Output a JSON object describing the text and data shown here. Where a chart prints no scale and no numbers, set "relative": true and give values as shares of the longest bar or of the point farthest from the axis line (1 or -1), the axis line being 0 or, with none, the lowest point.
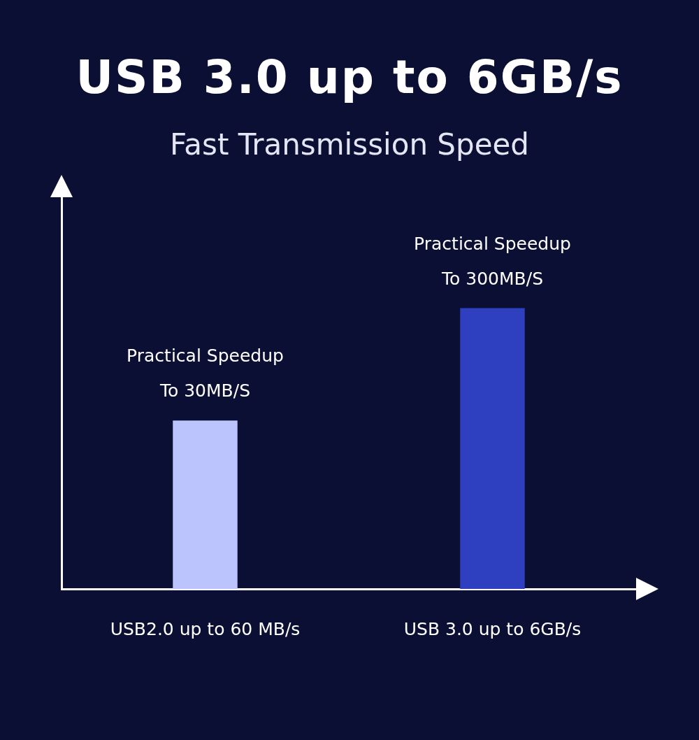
{
  "chart_data": {
    "type": "bar",
    "title": "USB 3.0 up to 6GB/s",
    "subtitle": "Fast Transmission Speed",
    "categories": [
      "USB2.0 up to 60 MB/s",
      "USB 3.0 up to 6GB/s"
    ],
    "values": [
      0.6,
      1
    ],
    "colors": [
      "#bcc4fd",
      "#2e3fc0"
    ],
    "relative": true,
    "annotations": [
      {
        "text": "Practical Speedup\nTo 30MB/S",
        "x": "USB2.0 up to 60 MB/s",
        "y": 0.6
      },
      {
        "text": "Practical Speedup\nTo 300MB/S",
        "x": "USB 3.0 up to 6GB/s",
        "y": 1
      }
    ]
  }
}
